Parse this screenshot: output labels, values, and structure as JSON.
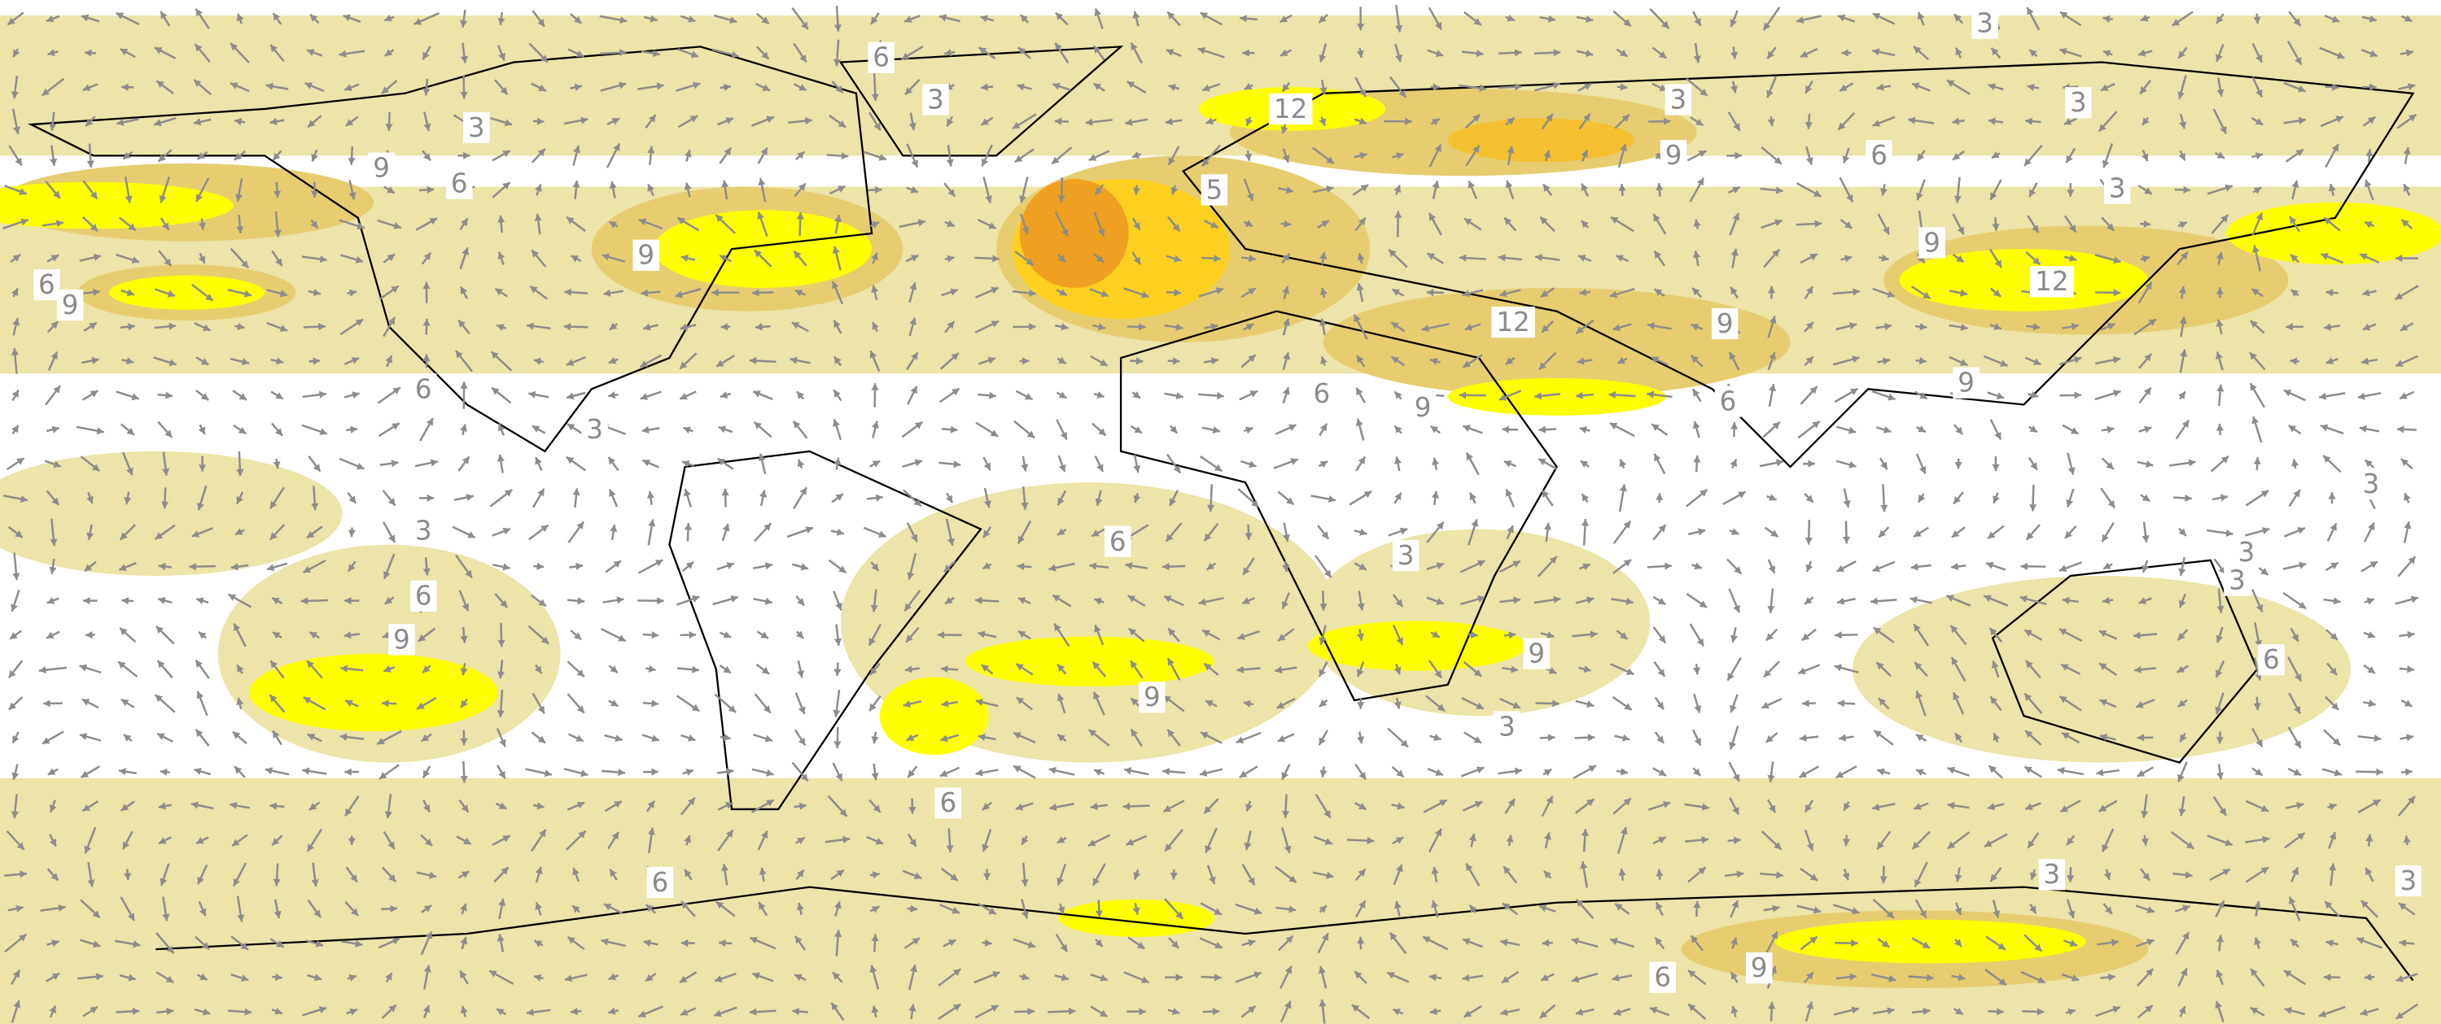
{
  "map": {
    "contour_labels": [
      "6",
      "3",
      "3",
      "12",
      "3",
      "9",
      "6",
      "3",
      "3",
      "9",
      "6",
      "5",
      "3",
      "9",
      "9",
      "6",
      "9",
      "12",
      "12",
      "9",
      "9",
      "6",
      "6",
      "9",
      "6",
      "3",
      "3",
      "3",
      "6",
      "3",
      "3",
      "3",
      "6",
      "9",
      "9",
      "6",
      "9",
      "3",
      "6",
      "6",
      "3",
      "3",
      "9",
      "6"
    ]
  }
}
